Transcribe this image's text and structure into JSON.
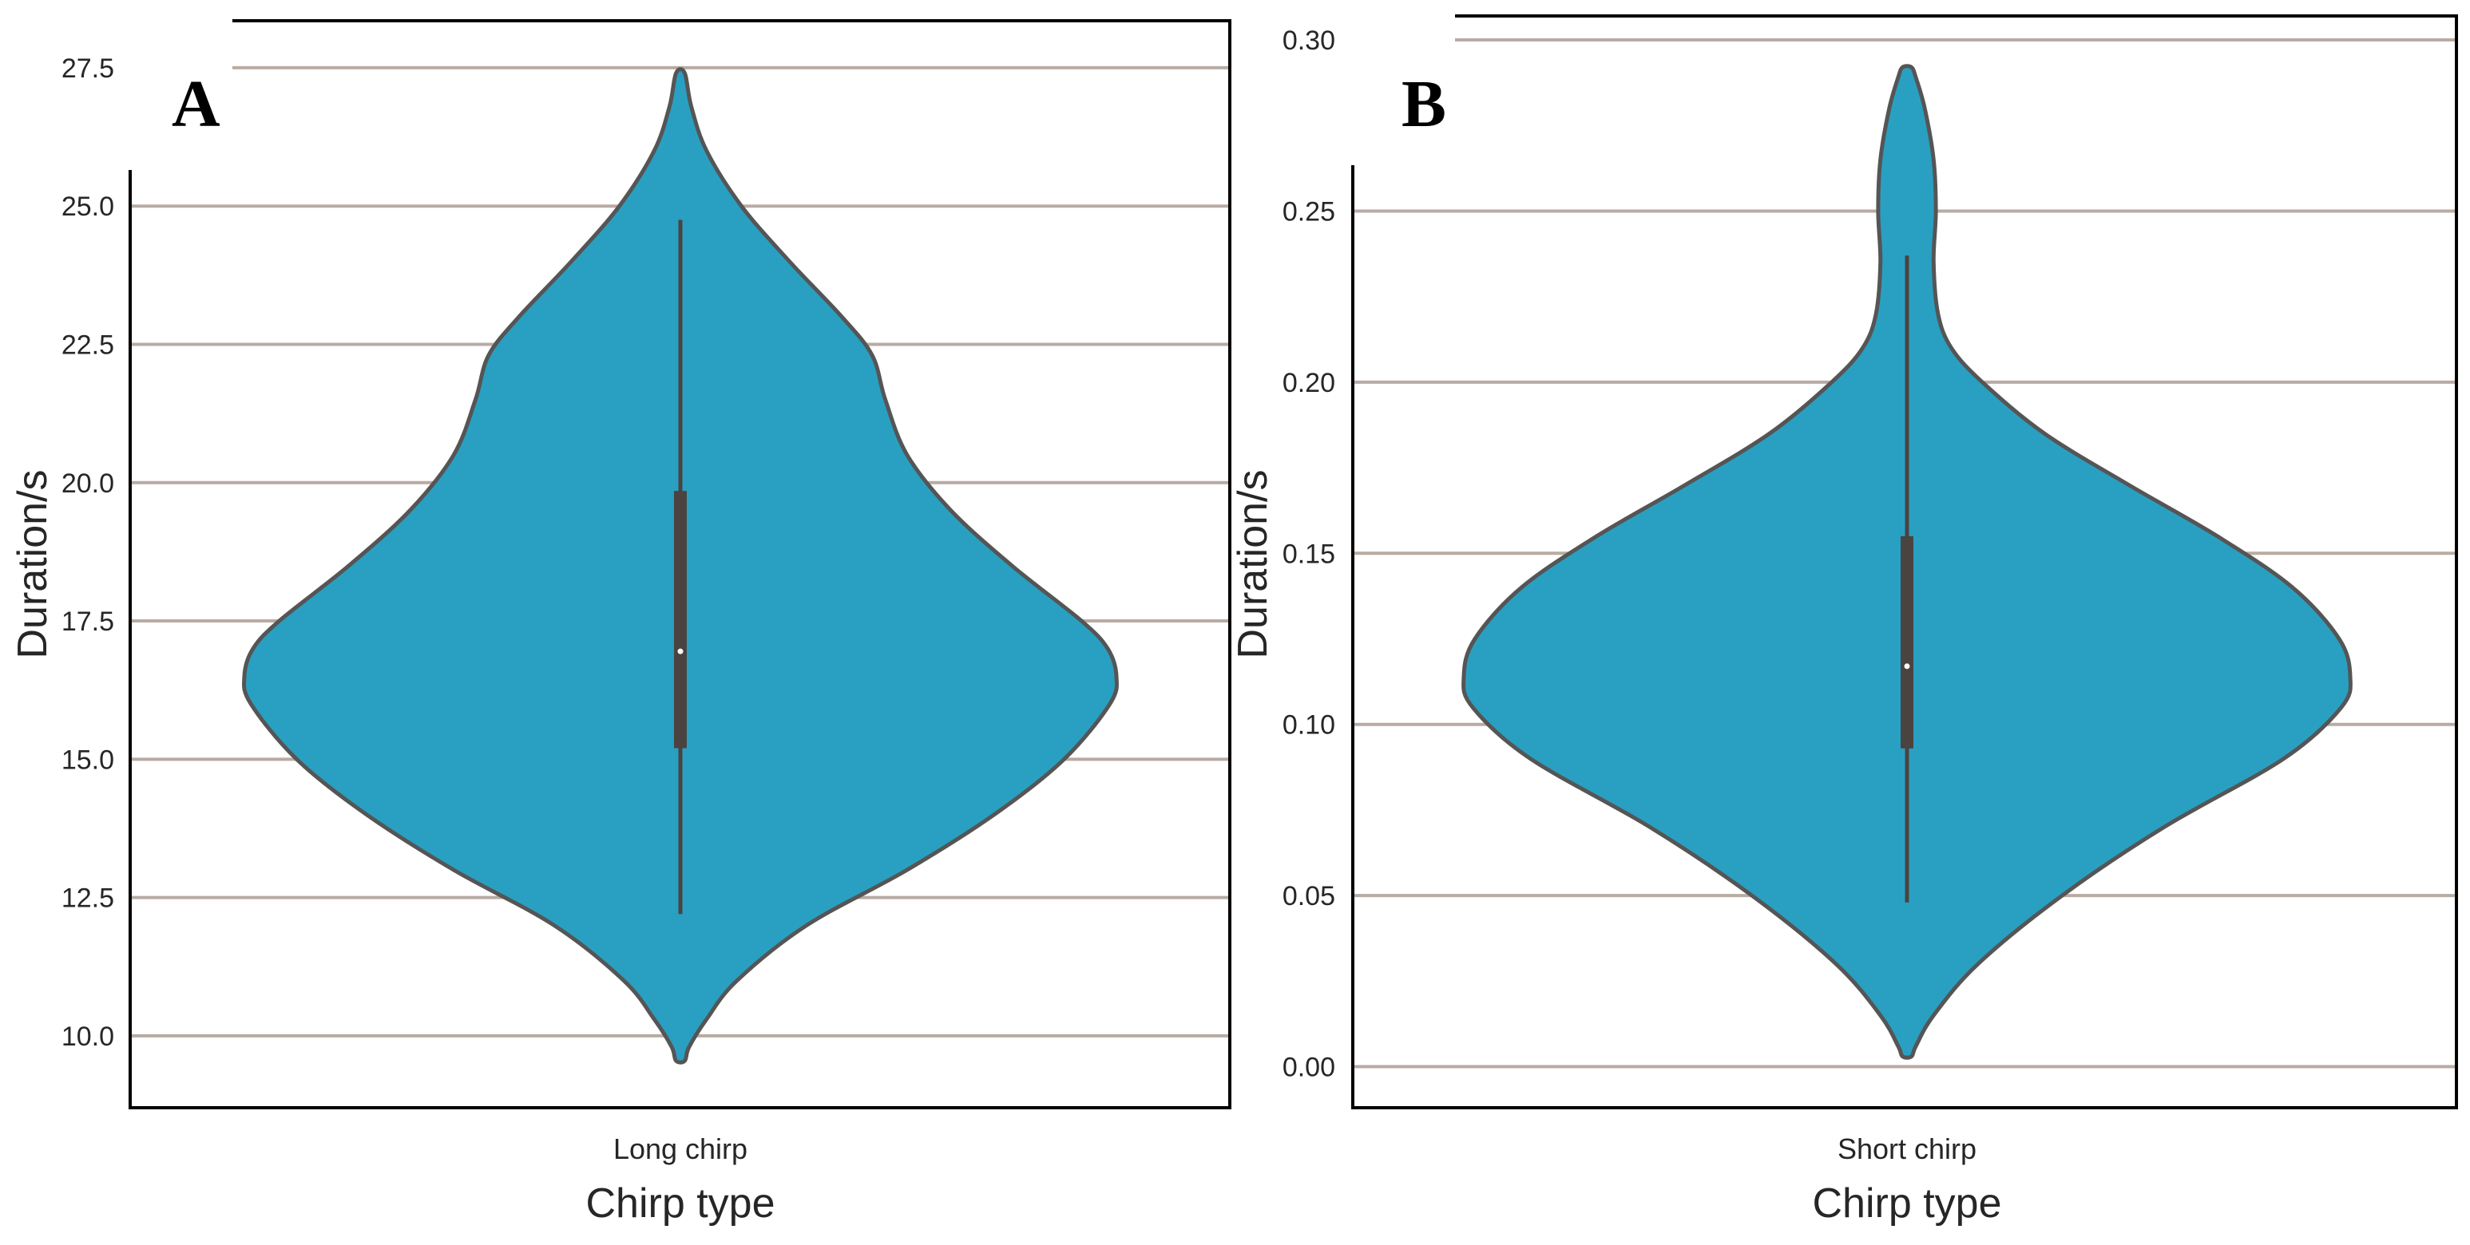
{
  "colors": {
    "violin_fill": "#29a0c2",
    "violin_edge": "#555555",
    "box": "#4a4340",
    "median": "#ffffff",
    "grid": "#b8aba3",
    "frame": "#000000"
  },
  "chart_data": [
    {
      "type": "violin",
      "panel_label": "A",
      "xlabel": "Chirp type",
      "ylabel": "Duration/s",
      "categories": [
        "Long chirp"
      ],
      "ylim": [
        8.7,
        28.35
      ],
      "yticks": [
        10.0,
        12.5,
        15.0,
        17.5,
        20.0,
        22.5,
        25.0,
        27.5
      ],
      "ytick_labels": [
        "10.0",
        "12.5",
        "15.0",
        "17.5",
        "20.0",
        "22.5",
        "25.0",
        "27.5"
      ],
      "grid": "horizontal",
      "stats": {
        "min": 12.2,
        "q1": 15.2,
        "median": 16.95,
        "q3": 19.85,
        "max": 24.75
      },
      "density_profile": [
        {
          "y": 9.55,
          "w": 0.01
        },
        {
          "y": 9.8,
          "w": 0.02
        },
        {
          "y": 10.3,
          "w": 0.06
        },
        {
          "y": 11.0,
          "w": 0.13
        },
        {
          "y": 12.0,
          "w": 0.29
        },
        {
          "y": 13.0,
          "w": 0.52
        },
        {
          "y": 14.0,
          "w": 0.72
        },
        {
          "y": 15.0,
          "w": 0.88
        },
        {
          "y": 16.0,
          "w": 0.985
        },
        {
          "y": 16.5,
          "w": 1.0
        },
        {
          "y": 17.0,
          "w": 0.98
        },
        {
          "y": 17.5,
          "w": 0.92
        },
        {
          "y": 18.5,
          "w": 0.76
        },
        {
          "y": 19.5,
          "w": 0.62
        },
        {
          "y": 20.5,
          "w": 0.52
        },
        {
          "y": 21.5,
          "w": 0.47
        },
        {
          "y": 22.3,
          "w": 0.44
        },
        {
          "y": 23.0,
          "w": 0.37
        },
        {
          "y": 24.0,
          "w": 0.25
        },
        {
          "y": 25.0,
          "w": 0.14
        },
        {
          "y": 26.0,
          "w": 0.06
        },
        {
          "y": 26.8,
          "w": 0.025
        },
        {
          "y": 27.4,
          "w": 0.01
        }
      ]
    },
    {
      "type": "violin",
      "panel_label": "B",
      "xlabel": "Chirp type",
      "ylabel": "Duration/s",
      "categories": [
        "Short chirp"
      ],
      "ylim": [
        -0.012,
        0.307
      ],
      "yticks": [
        0.0,
        0.05,
        0.1,
        0.15,
        0.2,
        0.25,
        0.3
      ],
      "ytick_labels": [
        "0.00",
        "0.05",
        "0.10",
        "0.15",
        "0.20",
        "0.25",
        "0.30"
      ],
      "grid": "horizontal",
      "stats": {
        "min": 0.048,
        "q1": 0.093,
        "median": 0.117,
        "q3": 0.155,
        "max": 0.237
      },
      "density_profile": [
        {
          "y": 0.003,
          "w": 0.01
        },
        {
          "y": 0.006,
          "w": 0.02
        },
        {
          "y": 0.015,
          "w": 0.06
        },
        {
          "y": 0.03,
          "w": 0.16
        },
        {
          "y": 0.05,
          "w": 0.35
        },
        {
          "y": 0.07,
          "w": 0.58
        },
        {
          "y": 0.09,
          "w": 0.85
        },
        {
          "y": 0.105,
          "w": 0.98
        },
        {
          "y": 0.114,
          "w": 1.0
        },
        {
          "y": 0.125,
          "w": 0.975
        },
        {
          "y": 0.14,
          "w": 0.87
        },
        {
          "y": 0.155,
          "w": 0.7
        },
        {
          "y": 0.17,
          "w": 0.5
        },
        {
          "y": 0.185,
          "w": 0.31
        },
        {
          "y": 0.2,
          "w": 0.17
        },
        {
          "y": 0.21,
          "w": 0.1
        },
        {
          "y": 0.22,
          "w": 0.07
        },
        {
          "y": 0.235,
          "w": 0.06
        },
        {
          "y": 0.25,
          "w": 0.065
        },
        {
          "y": 0.265,
          "w": 0.06
        },
        {
          "y": 0.28,
          "w": 0.04
        },
        {
          "y": 0.289,
          "w": 0.02
        },
        {
          "y": 0.292,
          "w": 0.01
        }
      ]
    }
  ]
}
